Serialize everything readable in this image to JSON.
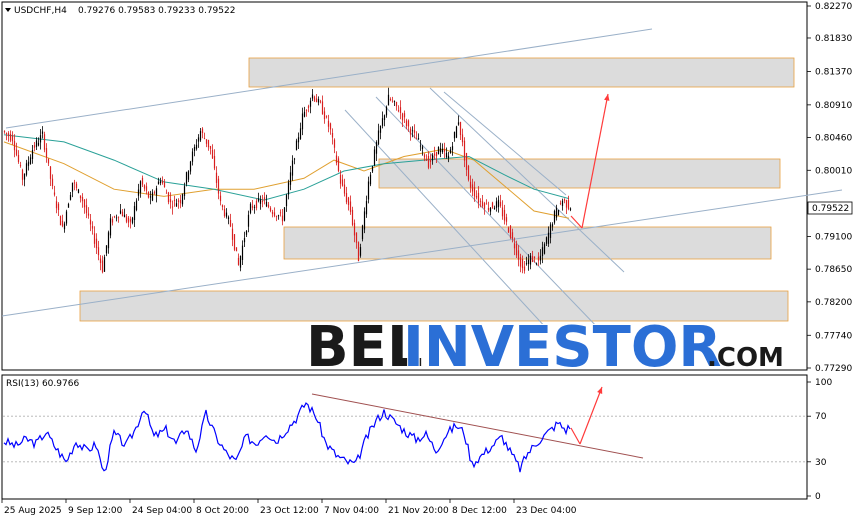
{
  "header": {
    "symbol": "USDCHF,H4",
    "ohlc": "0.79276 0.79583 0.79233 0.79522",
    "rsi_label": "RSI(13) 60.9766"
  },
  "watermark": {
    "part1": "BEL",
    "part2": "INVESTOR",
    "part3": ".COM"
  },
  "colors": {
    "bull": "#000000",
    "bear": "#d81e1e",
    "ma_fast": "#e0a030",
    "ma_slow": "#2aa198",
    "zone_fill": "#dcdcdc",
    "zone_stroke": "#e8a040",
    "trend": "#9ab0c8",
    "rsi_line": "#0000ff",
    "rsi_trend": "#a05050",
    "arrow": "#ff3b3b",
    "wm_dark": "#1a1a1a",
    "wm_blue": "#2b6fd6"
  },
  "chart_data": {
    "type": "candlestick",
    "price_axis": {
      "min": 0.7729,
      "max": 0.8227,
      "ticks": [
        "0.82270",
        "0.81830",
        "0.81370",
        "0.80910",
        "0.80460",
        "0.80010",
        "0.79100",
        "0.78650",
        "0.78200",
        "0.77740",
        "0.77290"
      ],
      "last_price": "0.79522"
    },
    "time_axis": {
      "labels": [
        "25 Aug 2025",
        "9 Sep 12:00",
        "24 Sep 04:00",
        "8 Oct 20:00",
        "23 Oct 12:00",
        "7 Nov 04:00",
        "21 Nov 20:00",
        "8 Dec 12:00",
        "23 Dec 04:00"
      ]
    },
    "price_path": [
      [
        0,
        0.8055
      ],
      [
        10,
        0.8045
      ],
      [
        20,
        0.799
      ],
      [
        30,
        0.803
      ],
      [
        40,
        0.805
      ],
      [
        50,
        0.7975
      ],
      [
        60,
        0.792
      ],
      [
        70,
        0.7985
      ],
      [
        80,
        0.796
      ],
      [
        90,
        0.7915
      ],
      [
        100,
        0.7865
      ],
      [
        108,
        0.793
      ],
      [
        118,
        0.7945
      ],
      [
        128,
        0.7925
      ],
      [
        138,
        0.7985
      ],
      [
        148,
        0.796
      ],
      [
        158,
        0.799
      ],
      [
        168,
        0.7955
      ],
      [
        178,
        0.796
      ],
      [
        188,
        0.8015
      ],
      [
        198,
        0.8055
      ],
      [
        208,
        0.803
      ],
      [
        218,
        0.7955
      ],
      [
        228,
        0.7925
      ],
      [
        236,
        0.787
      ],
      [
        248,
        0.795
      ],
      [
        260,
        0.796
      ],
      [
        270,
        0.7945
      ],
      [
        280,
        0.7935
      ],
      [
        290,
        0.801
      ],
      [
        300,
        0.8075
      ],
      [
        310,
        0.8105
      ],
      [
        318,
        0.809
      ],
      [
        328,
        0.8055
      ],
      [
        338,
        0.7985
      ],
      [
        348,
        0.7945
      ],
      [
        356,
        0.788
      ],
      [
        366,
        0.7985
      ],
      [
        376,
        0.805
      ],
      [
        386,
        0.81
      ],
      [
        396,
        0.8085
      ],
      [
        406,
        0.806
      ],
      [
        416,
        0.804
      ],
      [
        426,
        0.801
      ],
      [
        436,
        0.803
      ],
      [
        446,
        0.802
      ],
      [
        456,
        0.807
      ],
      [
        466,
        0.7985
      ],
      [
        476,
        0.796
      ],
      [
        486,
        0.795
      ],
      [
        496,
        0.7955
      ],
      [
        506,
        0.792
      ],
      [
        514,
        0.789
      ],
      [
        520,
        0.7865
      ],
      [
        528,
        0.788
      ],
      [
        536,
        0.7875
      ],
      [
        544,
        0.7905
      ],
      [
        552,
        0.794
      ],
      [
        560,
        0.796
      ],
      [
        566,
        0.7952
      ]
    ],
    "ma_fast": [
      [
        0,
        0.804
      ],
      [
        60,
        0.801
      ],
      [
        110,
        0.7975
      ],
      [
        160,
        0.7965
      ],
      [
        210,
        0.7975
      ],
      [
        250,
        0.7975
      ],
      [
        300,
        0.799
      ],
      [
        330,
        0.8015
      ],
      [
        360,
        0.8
      ],
      [
        400,
        0.802
      ],
      [
        440,
        0.803
      ],
      [
        470,
        0.8015
      ],
      [
        500,
        0.798
      ],
      [
        530,
        0.7945
      ],
      [
        565,
        0.7935
      ]
    ],
    "ma_slow": [
      [
        0,
        0.805
      ],
      [
        60,
        0.804
      ],
      [
        110,
        0.8015
      ],
      [
        160,
        0.7985
      ],
      [
        210,
        0.7975
      ],
      [
        260,
        0.796
      ],
      [
        300,
        0.7975
      ],
      [
        340,
        0.8
      ],
      [
        380,
        0.801
      ],
      [
        420,
        0.8015
      ],
      [
        465,
        0.802
      ],
      [
        500,
        0.7995
      ],
      [
        530,
        0.7975
      ],
      [
        565,
        0.7962
      ]
    ],
    "zones": [
      {
        "x1": 249,
        "x2": 794,
        "y1": 58,
        "y2": 87
      },
      {
        "x1": 379,
        "x2": 780,
        "y1": 159,
        "y2": 188
      },
      {
        "x1": 284,
        "x2": 771,
        "y1": 227,
        "y2": 259
      },
      {
        "x1": 80,
        "x2": 788,
        "y1": 291,
        "y2": 321
      }
    ],
    "rsi": {
      "axis": {
        "min": 0,
        "max": 100,
        "ticks": [
          100,
          70,
          30,
          0
        ],
        "levels": [
          70,
          30
        ]
      },
      "current": 60.9766,
      "path": [
        [
          0,
          48
        ],
        [
          12,
          44
        ],
        [
          22,
          50
        ],
        [
          32,
          46
        ],
        [
          42,
          56
        ],
        [
          52,
          42
        ],
        [
          62,
          30
        ],
        [
          72,
          48
        ],
        [
          82,
          40
        ],
        [
          92,
          45
        ],
        [
          100,
          20
        ],
        [
          110,
          55
        ],
        [
          122,
          44
        ],
        [
          132,
          60
        ],
        [
          140,
          78
        ],
        [
          150,
          52
        ],
        [
          162,
          58
        ],
        [
          172,
          46
        ],
        [
          182,
          60
        ],
        [
          192,
          40
        ],
        [
          202,
          72
        ],
        [
          212,
          52
        ],
        [
          222,
          38
        ],
        [
          232,
          30
        ],
        [
          242,
          52
        ],
        [
          252,
          46
        ],
        [
          262,
          56
        ],
        [
          272,
          48
        ],
        [
          282,
          58
        ],
        [
          292,
          68
        ],
        [
          302,
          82
        ],
        [
          312,
          70
        ],
        [
          322,
          46
        ],
        [
          332,
          36
        ],
        [
          342,
          30
        ],
        [
          352,
          28
        ],
        [
          362,
          50
        ],
        [
          372,
          66
        ],
        [
          380,
          74
        ],
        [
          392,
          64
        ],
        [
          402,
          56
        ],
        [
          412,
          50
        ],
        [
          422,
          54
        ],
        [
          432,
          40
        ],
        [
          442,
          54
        ],
        [
          452,
          62
        ],
        [
          460,
          56
        ],
        [
          468,
          28
        ],
        [
          478,
          36
        ],
        [
          488,
          44
        ],
        [
          498,
          52
        ],
        [
          508,
          36
        ],
        [
          516,
          24
        ],
        [
          524,
          38
        ],
        [
          534,
          48
        ],
        [
          544,
          56
        ],
        [
          554,
          64
        ],
        [
          562,
          58
        ],
        [
          566,
          61
        ]
      ]
    }
  }
}
